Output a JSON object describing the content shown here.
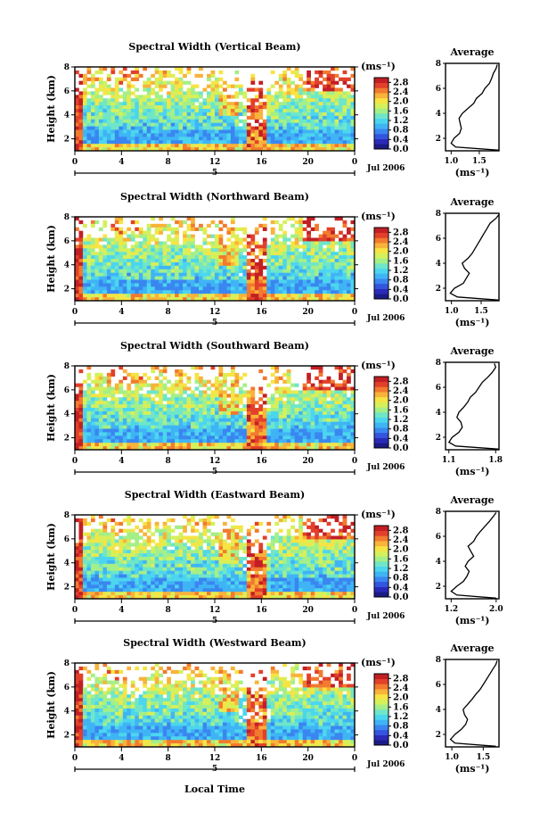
{
  "chart_data": [
    {
      "type": "heatmap",
      "title": "Spectral Width (Vertical Beam)",
      "ylabel": "Height (km)",
      "xlabel": "",
      "date_label": "Jul 2006",
      "day_label": "5",
      "x_ticks": [
        "0",
        "4",
        "8",
        "12",
        "16",
        "20",
        "0"
      ],
      "y_ticks": [
        "2",
        "4",
        "6",
        "8"
      ],
      "xlim": [
        0,
        24
      ],
      "ylim": [
        1,
        8
      ],
      "colorbar": {
        "unit": "(ms⁻¹)",
        "ticks": [
          "0.0",
          "0.4",
          "0.8",
          "1.2",
          "1.6",
          "2.0",
          "2.4",
          "2.8"
        ],
        "range": [
          0,
          3.0
        ]
      },
      "average": {
        "title": "Average",
        "xlabel": "(ms⁻¹)",
        "x_ticks": [
          "1.0",
          "1.5"
        ],
        "xlim": [
          0.9,
          1.85
        ],
        "height": [
          1.05,
          1.3,
          1.6,
          2.0,
          2.4,
          2.8,
          3.2,
          3.6,
          4.0,
          4.4,
          4.8,
          5.2,
          5.6,
          6.0,
          6.4,
          6.8,
          7.2,
          7.6,
          7.9
        ],
        "values": [
          1.85,
          1.08,
          1.0,
          1.05,
          1.15,
          1.18,
          1.16,
          1.14,
          1.2,
          1.3,
          1.4,
          1.45,
          1.55,
          1.6,
          1.68,
          1.72,
          1.75,
          1.8,
          1.82
        ]
      }
    },
    {
      "type": "heatmap",
      "title": "Spectral Width (Northward Beam)",
      "ylabel": "Height (km)",
      "xlabel": "",
      "date_label": "Jul 2006",
      "day_label": "5",
      "x_ticks": [
        "0",
        "4",
        "8",
        "12",
        "16",
        "20",
        "0"
      ],
      "y_ticks": [
        "2",
        "4",
        "6",
        "8"
      ],
      "xlim": [
        0,
        24
      ],
      "ylim": [
        1,
        8
      ],
      "colorbar": {
        "unit": "(ms⁻¹)",
        "ticks": [
          "0.0",
          "0.4",
          "0.8",
          "1.2",
          "1.6",
          "2.0",
          "2.4",
          "2.8"
        ],
        "range": [
          0,
          3.0
        ]
      },
      "average": {
        "title": "Average",
        "xlabel": "(ms⁻¹)",
        "x_ticks": [
          "1.0",
          "1.5"
        ],
        "xlim": [
          0.9,
          1.8
        ],
        "height": [
          1.05,
          1.3,
          1.6,
          2.0,
          2.4,
          2.8,
          3.2,
          3.6,
          4.0,
          4.4,
          4.8,
          5.2,
          5.6,
          6.0,
          6.4,
          6.8,
          7.2,
          7.6,
          7.9
        ],
        "values": [
          1.8,
          1.1,
          0.98,
          1.05,
          1.2,
          1.25,
          1.3,
          1.22,
          1.18,
          1.28,
          1.35,
          1.4,
          1.45,
          1.5,
          1.55,
          1.6,
          1.65,
          1.75,
          1.8
        ]
      }
    },
    {
      "type": "heatmap",
      "title": "Spectral Width (Southward Beam)",
      "ylabel": "Height (km)",
      "xlabel": "",
      "date_label": "Jul 2006",
      "day_label": "5",
      "x_ticks": [
        "0",
        "4",
        "8",
        "12",
        "16",
        "20",
        "0"
      ],
      "y_ticks": [
        "2",
        "4",
        "6",
        "8"
      ],
      "xlim": [
        0,
        24
      ],
      "ylim": [
        1,
        8
      ],
      "colorbar": {
        "unit": "(ms⁻¹)",
        "ticks": [
          "0.0",
          "0.4",
          "0.8",
          "1.2",
          "1.6",
          "2.0",
          "2.4",
          "2.8"
        ],
        "range": [
          0,
          3.0
        ]
      },
      "average": {
        "title": "Average",
        "xlabel": "(ms⁻¹)",
        "x_ticks": [
          "1.1",
          "1.8"
        ],
        "xlim": [
          1.05,
          1.85
        ],
        "height": [
          1.05,
          1.3,
          1.6,
          2.0,
          2.4,
          2.8,
          3.2,
          3.6,
          4.0,
          4.4,
          4.8,
          5.2,
          5.6,
          6.0,
          6.4,
          6.8,
          7.2,
          7.6,
          7.9
        ],
        "values": [
          1.85,
          1.2,
          1.1,
          1.15,
          1.25,
          1.3,
          1.28,
          1.22,
          1.25,
          1.32,
          1.38,
          1.42,
          1.5,
          1.55,
          1.6,
          1.68,
          1.75,
          1.8,
          1.78
        ]
      }
    },
    {
      "type": "heatmap",
      "title": "Spectral Width (Eastward Beam)",
      "ylabel": "Height (km)",
      "xlabel": "",
      "date_label": "Jul 2006",
      "day_label": "5",
      "x_ticks": [
        "0",
        "4",
        "8",
        "12",
        "16",
        "20",
        "0"
      ],
      "y_ticks": [
        "2",
        "4",
        "6",
        "8"
      ],
      "xlim": [
        0,
        24
      ],
      "ylim": [
        1,
        8
      ],
      "colorbar": {
        "unit": "(ms⁻¹)",
        "ticks": [
          "0.0",
          "0.4",
          "0.8",
          "1.2",
          "1.6",
          "2.0",
          "2.4",
          "2.8"
        ],
        "range": [
          0,
          3.0
        ]
      },
      "average": {
        "title": "Average",
        "xlabel": "(ms⁻¹)",
        "x_ticks": [
          "1.2",
          "2.0"
        ],
        "xlim": [
          1.1,
          2.05
        ],
        "height": [
          1.05,
          1.3,
          1.6,
          2.0,
          2.4,
          2.8,
          3.2,
          3.6,
          4.0,
          4.4,
          4.8,
          5.2,
          5.6,
          6.0,
          6.4,
          6.8,
          7.2,
          7.6,
          7.9
        ],
        "values": [
          2.0,
          1.3,
          1.2,
          1.3,
          1.42,
          1.48,
          1.52,
          1.45,
          1.5,
          1.6,
          1.55,
          1.5,
          1.6,
          1.65,
          1.72,
          1.8,
          1.88,
          1.95,
          2.0
        ]
      }
    },
    {
      "type": "heatmap",
      "title": "Spectral Width (Westward Beam)",
      "ylabel": "Height (km)",
      "xlabel": "Local Time",
      "date_label": "Jul 2006",
      "day_label": "5",
      "x_ticks": [
        "0",
        "4",
        "8",
        "12",
        "16",
        "20",
        "0"
      ],
      "y_ticks": [
        "2",
        "4",
        "6",
        "8"
      ],
      "xlim": [
        0,
        24
      ],
      "ylim": [
        1,
        8
      ],
      "colorbar": {
        "unit": "(ms⁻¹)",
        "ticks": [
          "0.0",
          "0.4",
          "0.8",
          "1.2",
          "1.6",
          "2.0",
          "2.4",
          "2.8"
        ],
        "range": [
          0,
          3.0
        ]
      },
      "average": {
        "title": "Average",
        "xlabel": "(ms⁻¹)",
        "x_ticks": [
          "1.0",
          "1.5"
        ],
        "xlim": [
          0.9,
          1.75
        ],
        "height": [
          1.05,
          1.3,
          1.6,
          2.0,
          2.4,
          2.8,
          3.2,
          3.6,
          4.0,
          4.4,
          4.8,
          5.2,
          5.6,
          6.0,
          6.4,
          6.8,
          7.2,
          7.6,
          7.9
        ],
        "values": [
          1.7,
          1.05,
          0.98,
          1.05,
          1.15,
          1.22,
          1.25,
          1.2,
          1.18,
          1.25,
          1.32,
          1.38,
          1.45,
          1.5,
          1.55,
          1.6,
          1.65,
          1.7,
          1.72
        ]
      }
    }
  ]
}
